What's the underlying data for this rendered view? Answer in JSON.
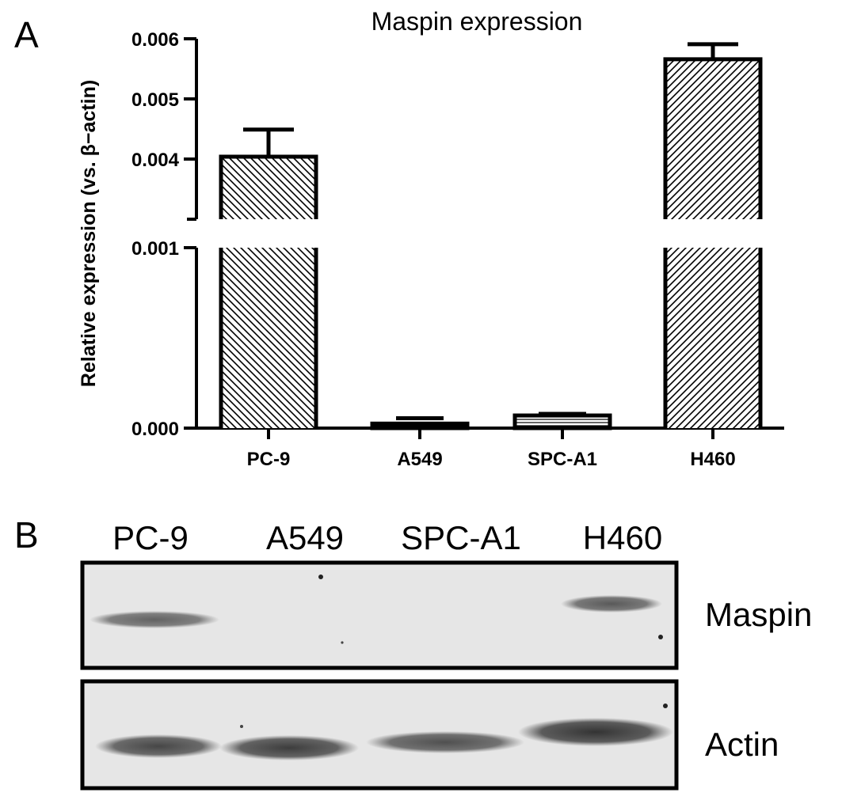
{
  "panel_a": {
    "letter": "A"
  },
  "panel_b": {
    "letter": "B"
  },
  "chart_data": {
    "type": "bar",
    "title": "Maspin expression",
    "ylabel": "Relative expression (vs. β−actin)",
    "xlabel": "",
    "categories": [
      "PC-9",
      "A549",
      "SPC-A1",
      "H460"
    ],
    "values": [
      0.00404,
      2.5e-05,
      7e-05,
      0.00566
    ],
    "error_bars": [
      0.00045,
      3e-05,
      5e-06,
      0.00025
    ],
    "bar_patterns": [
      "diagonal-hatch-back",
      "horizontal-lines",
      "horizontal-lines",
      "diagonal-hatch-forward"
    ],
    "y_axis_break": true,
    "ylim_lower": [
      0,
      0.001
    ],
    "ylim_upper": [
      0.0035,
      0.006
    ],
    "yticks_lower": [
      "0.000",
      "0.001"
    ],
    "yticks_upper": [
      "0.004",
      "0.005",
      "0.006"
    ],
    "grid": false,
    "legend": "none"
  },
  "western_blot": {
    "lanes": [
      "PC-9",
      "A549",
      "SPC-A1",
      "H460"
    ],
    "blots": [
      {
        "label": "Maspin",
        "band_intensity": [
          0.55,
          0.0,
          0.0,
          0.6
        ]
      },
      {
        "label": "Actin",
        "band_intensity": [
          0.8,
          0.85,
          0.8,
          0.9
        ]
      }
    ]
  }
}
